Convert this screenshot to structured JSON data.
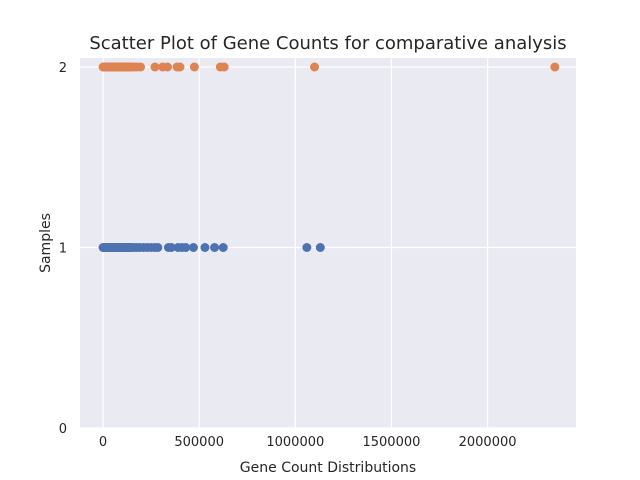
{
  "chart_data": {
    "type": "scatter",
    "title": "Scatter Plot of Gene Counts for comparative analysis",
    "xlabel": "Gene Count Distributions",
    "ylabel": "Samples",
    "xlim": [
      -120000,
      2460000
    ],
    "ylim": [
      0,
      2
    ],
    "xticks": [
      0,
      500000,
      1000000,
      1500000,
      2000000
    ],
    "xtick_labels": [
      "0",
      "500000",
      "1000000",
      "1500000",
      "2000000"
    ],
    "yticks": [
      0,
      1,
      2
    ],
    "ytick_labels": [
      "0",
      "1",
      "2"
    ],
    "grid": true,
    "background_color": "#eaeaf2",
    "grid_color": "#ffffff",
    "series": [
      {
        "color": "#4c72b0",
        "x": [
          0,
          5000,
          10000,
          15000,
          20000,
          25000,
          30000,
          35000,
          40000,
          45000,
          50000,
          55000,
          60000,
          65000,
          70000,
          75000,
          80000,
          85000,
          90000,
          95000,
          100000,
          105000,
          110000,
          115000,
          120000,
          125000,
          130000,
          135000,
          140000,
          150000,
          160000,
          175000,
          190000,
          210000,
          230000,
          250000,
          270000,
          285000,
          340000,
          355000,
          390000,
          410000,
          430000,
          470000,
          530000,
          580000,
          625000,
          1060000,
          1130000
        ],
        "y": [
          1,
          1,
          1,
          1,
          1,
          1,
          1,
          1,
          1,
          1,
          1,
          1,
          1,
          1,
          1,
          1,
          1,
          1,
          1,
          1,
          1,
          1,
          1,
          1,
          1,
          1,
          1,
          1,
          1,
          1,
          1,
          1,
          1,
          1,
          1,
          1,
          1,
          1,
          1,
          1,
          1,
          1,
          1,
          1,
          1,
          1,
          1,
          1,
          1
        ]
      },
      {
        "color": "#dd8452",
        "x": [
          0,
          5000,
          10000,
          15000,
          20000,
          25000,
          30000,
          35000,
          40000,
          45000,
          50000,
          55000,
          60000,
          65000,
          70000,
          75000,
          80000,
          85000,
          90000,
          95000,
          100000,
          105000,
          110000,
          115000,
          120000,
          125000,
          130000,
          135000,
          140000,
          150000,
          160000,
          175000,
          195000,
          270000,
          310000,
          335000,
          385000,
          400000,
          475000,
          610000,
          630000,
          1100000,
          2350000
        ],
        "y": [
          2,
          2,
          2,
          2,
          2,
          2,
          2,
          2,
          2,
          2,
          2,
          2,
          2,
          2,
          2,
          2,
          2,
          2,
          2,
          2,
          2,
          2,
          2,
          2,
          2,
          2,
          2,
          2,
          2,
          2,
          2,
          2,
          2,
          2,
          2,
          2,
          2,
          2,
          2,
          2,
          2,
          2,
          2
        ]
      }
    ]
  }
}
